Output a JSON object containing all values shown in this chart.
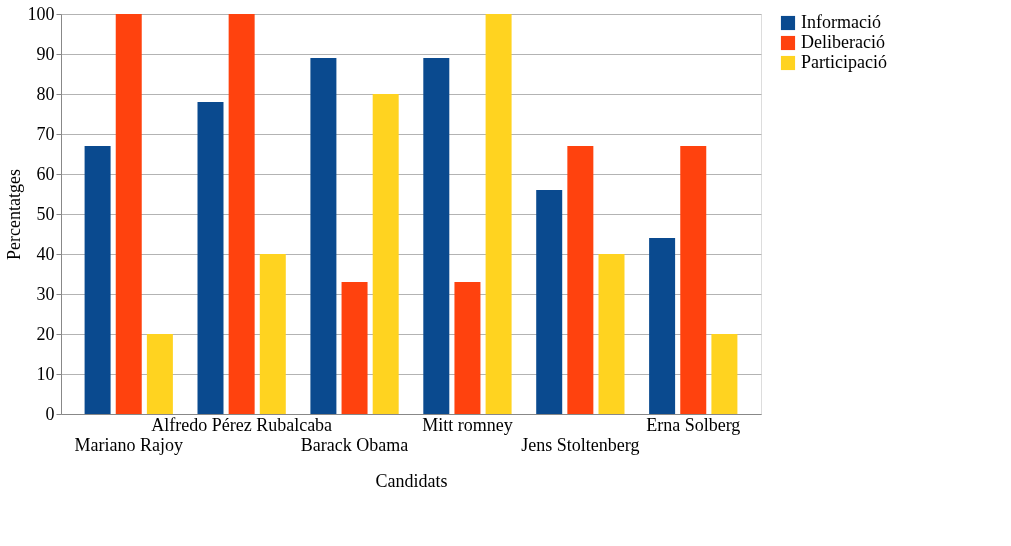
{
  "chart_data": {
    "type": "bar",
    "xlabel": "Candidats",
    "ylabel": "Percentatges",
    "categories": [
      "Mariano Rajoy",
      "Alfredo Pérez Rubalcaba",
      "Barack Obama",
      "Mitt romney",
      "Jens Stoltenberg",
      "Erna Solberg"
    ],
    "series": [
      {
        "name": "Informació",
        "color": "#0a4a8f",
        "values": [
          67,
          78,
          89,
          89,
          56,
          44
        ]
      },
      {
        "name": "Deliberació",
        "color": "#ff420e",
        "values": [
          100,
          100,
          33,
          33,
          67,
          67
        ]
      },
      {
        "name": "Participació",
        "color": "#ffd320",
        "values": [
          20,
          40,
          80,
          100,
          40,
          20
        ]
      }
    ],
    "ylim": [
      0,
      100
    ],
    "yticks": [
      0,
      10,
      20,
      30,
      40,
      50,
      60,
      70,
      80,
      90,
      100
    ],
    "grid": "y",
    "legend": "right"
  }
}
